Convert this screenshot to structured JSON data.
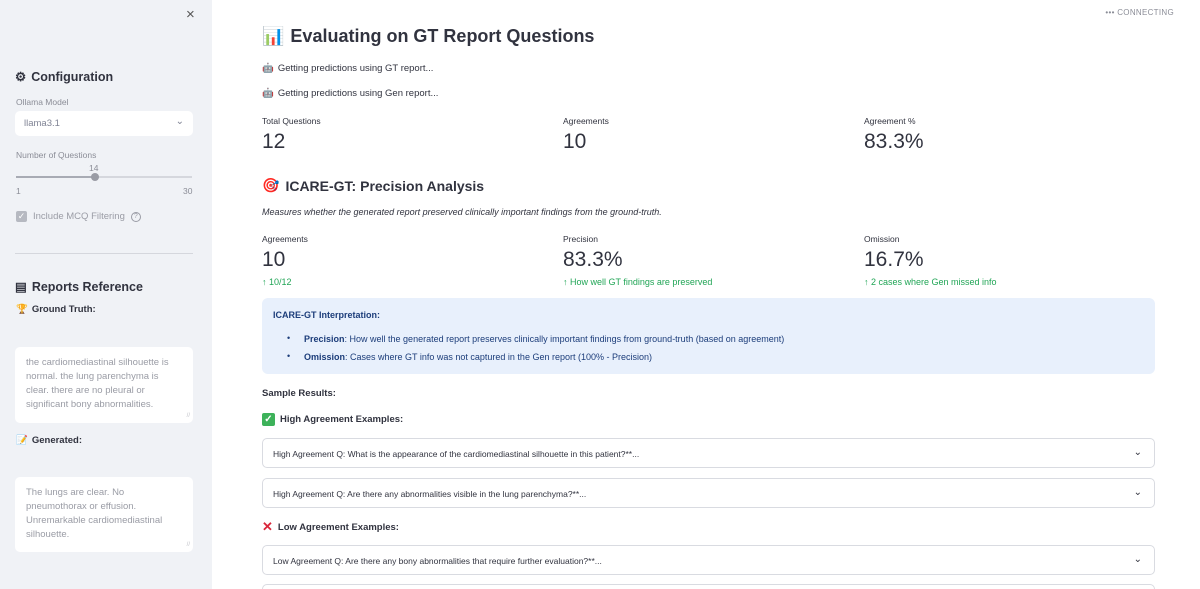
{
  "sidebar": {
    "close_icon": "×",
    "config_icon": "⚙",
    "config_title": "Configuration",
    "model_label": "Ollama Model",
    "model_value": "llama3.1",
    "chevron": "⌄",
    "questions_label": "Number of Questions",
    "slider_value": "14",
    "slider_min": "1",
    "slider_max": "30",
    "slider_fraction": 0.448,
    "check_mark": "✓",
    "mcq_label": "Include MCQ Filtering",
    "help_icon": "?",
    "reports_icon": "▤",
    "reports_title": "Reports Reference",
    "gt_icon": "🏆",
    "gt_label": "Ground Truth:",
    "gt_text": "the cardiomediastinal silhouette is normal. the lung parenchyma is clear. there are no pleural or significant bony abnormalities.",
    "gen_icon": "📝",
    "gen_label": "Generated:",
    "gen_text": "The lungs are clear. No pneumothorax or effusion. Unremarkable cardiomediastinal silhouette.",
    "grip": "//"
  },
  "main": {
    "status": "••• CONNECTING",
    "title_icon": "📊",
    "title": "Evaluating on GT Report Questions",
    "robot_icon": "🤖",
    "info1": "Getting predictions using GT report...",
    "info2": "Getting predictions using Gen report...",
    "metrics1": [
      {
        "label": "Total Questions",
        "value": "12"
      },
      {
        "label": "Agreements",
        "value": "10"
      },
      {
        "label": "Agreement %",
        "value": "83.3%"
      }
    ],
    "section_icon": "🎯",
    "section_title": "ICARE-GT: Precision Analysis",
    "caption": "Measures whether the generated report preserved clinically important findings from the ground-truth.",
    "metrics2": [
      {
        "label": "Agreements",
        "value": "10",
        "delta": "↑ 10/12"
      },
      {
        "label": "Precision",
        "value": "83.3%",
        "delta": "↑ How well GT findings are preserved"
      },
      {
        "label": "Omission",
        "value": "16.7%",
        "delta": "↑ 2 cases where Gen missed info"
      }
    ],
    "interp_title": "ICARE-GT Interpretation:",
    "interp_items": [
      {
        "term": "Precision",
        "text": ": How well the generated report preserves clinically important findings from ground-truth (based on agreement)"
      },
      {
        "term": "Omission",
        "text": ": Cases where GT info was not captured in the Gen report (100% - Precision)"
      }
    ],
    "sample_results": "Sample Results:",
    "high_icon": "✓",
    "high_label": "High Agreement Examples:",
    "high_items": [
      "High Agreement Q: What is the appearance of the cardiomediastinal silhouette in this patient?**...",
      "High Agreement Q: Are there any abnormalities visible in the lung parenchyma?**..."
    ],
    "low_icon": "✕",
    "low_label": "Low Agreement Examples:",
    "low_items": [
      "Low Agreement Q: Are there any bony abnormalities that require further evaluation?**..."
    ],
    "chevron": "⌄"
  }
}
